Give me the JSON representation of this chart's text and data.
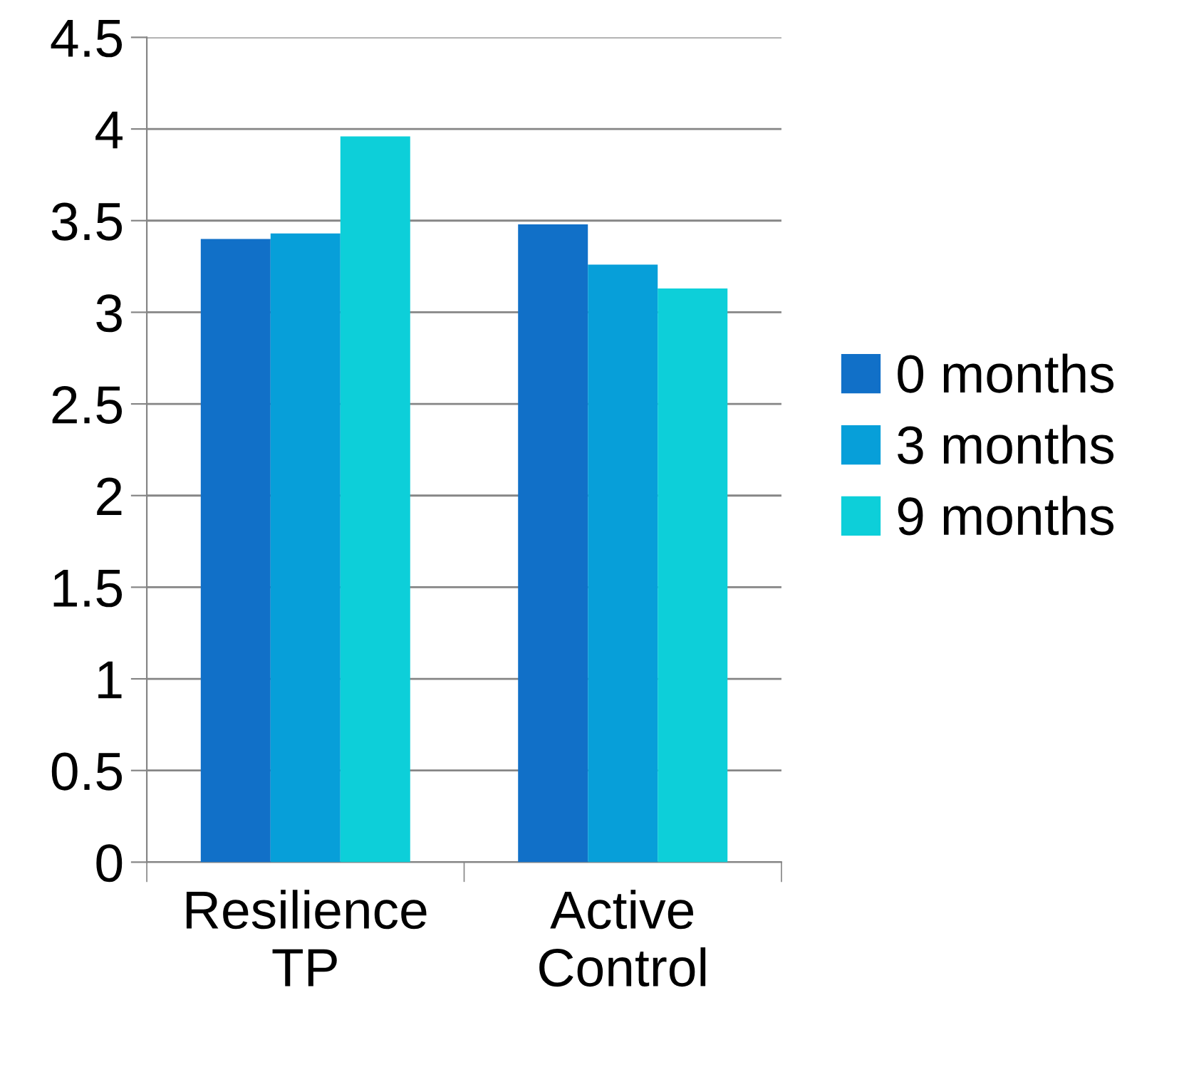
{
  "chart_data": {
    "type": "bar",
    "categories": [
      "Resilience TP",
      "Active Control"
    ],
    "series": [
      {
        "name": "0 months",
        "color": "#1170c8",
        "values": [
          3.4,
          3.48
        ]
      },
      {
        "name": "3 months",
        "color": "#079fd9",
        "values": [
          3.43,
          3.26
        ]
      },
      {
        "name": "9 months",
        "color": "#0dcfd9",
        "values": [
          3.96,
          3.13
        ]
      }
    ],
    "ylim": [
      0,
      4.5
    ],
    "yticks": [
      0,
      0.5,
      1,
      1.5,
      2,
      2.5,
      3,
      3.5,
      4,
      4.5
    ],
    "grid": "y",
    "legend": "right"
  }
}
